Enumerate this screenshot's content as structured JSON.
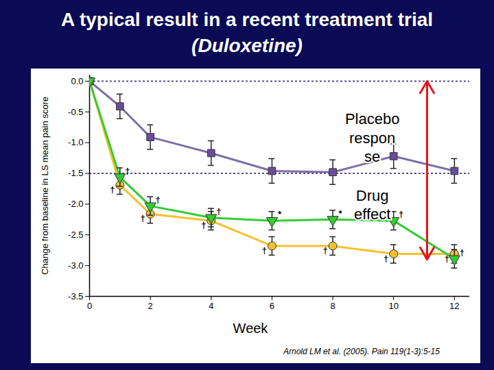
{
  "chart_data": {
    "type": "line",
    "title": "A typical result in a recent treatment trial (Duloxetine)",
    "x_label": "Week",
    "y_label": "Change from baseline in LS mean pain score",
    "source": "Arnold LM et al. (2005). Pain 119(1-3):5-15",
    "x": [
      0,
      1,
      2,
      4,
      6,
      8,
      10,
      12
    ],
    "xlim": [
      0,
      12.5
    ],
    "xticks": [
      0,
      2,
      4,
      6,
      8,
      10,
      12
    ],
    "ylim": [
      -3.5,
      0.1
    ],
    "yticks": [
      {
        "value": 0,
        "label": "0.0"
      },
      {
        "value": -0.5,
        "label": "-0.5"
      },
      {
        "value": -1,
        "label": "-1.0"
      },
      {
        "value": -1.5,
        "label": "-1.5"
      },
      {
        "value": -2,
        "label": "-2.0"
      },
      {
        "value": -2.5,
        "label": "-2.5"
      },
      {
        "value": -3,
        "label": "-3.0"
      },
      {
        "value": -3.5,
        "label": "-3.5"
      }
    ],
    "grid": false,
    "series": [
      {
        "color": "#6a4c9c",
        "marker": "square",
        "values": [
          0,
          -0.41,
          -0.91,
          -1.17,
          -1.46,
          -1.48,
          -1.22,
          -1.46
        ],
        "errors": [
          0,
          0.2,
          0.2,
          0.2,
          0.2,
          0.2,
          0.2,
          0.2
        ]
      },
      {
        "color": "#f2c12e",
        "marker": "circle",
        "values": [
          0,
          -1.69,
          -2.16,
          -2.27,
          -2.68,
          -2.68,
          -2.81,
          -2.81
        ],
        "errors": [
          0,
          0.15,
          0.15,
          0.15,
          0.15,
          0.15,
          0.15,
          0.15
        ],
        "significance": [
          null,
          "†",
          "†",
          "†",
          "†",
          "†",
          "†",
          "†"
        ]
      },
      {
        "color": "#33cc33",
        "marker": "triangle-down",
        "values": [
          0,
          -1.56,
          -2.03,
          -2.22,
          -2.27,
          -2.25,
          -2.27,
          -2.89
        ],
        "errors": [
          0,
          0.15,
          0.15,
          0.15,
          0.15,
          0.15,
          0.15,
          0.15
        ],
        "significance": [
          null,
          "†",
          "†",
          "†",
          "*",
          "*",
          "†",
          "†"
        ]
      }
    ],
    "reference_lines": [
      0,
      -1.5
    ],
    "placebo_response": {
      "x": 11.1,
      "from": -1.5,
      "to": 0
    },
    "drug_effect": {
      "x": 11.1,
      "from": -1.5,
      "to": -2.9
    },
    "annotations": [
      {
        "text": "Placebo\nrespon\nse",
        "x": 9.3,
        "y": -0.91
      },
      {
        "text": "Drug\neffect",
        "x": 9.3,
        "y": -2.0
      }
    ]
  }
}
